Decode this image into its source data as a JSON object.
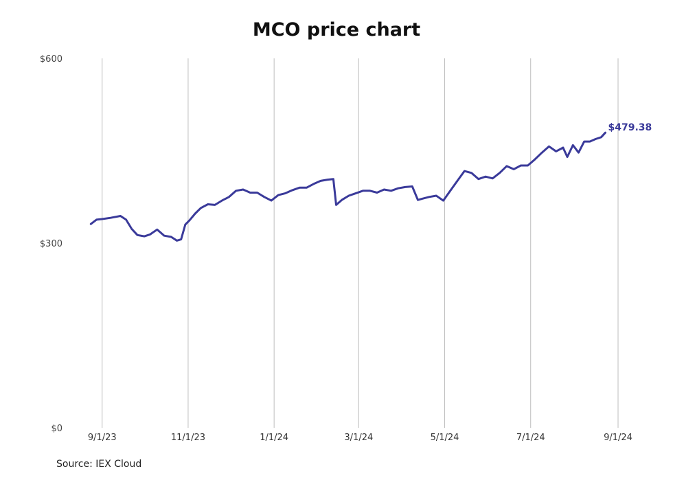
{
  "source_label": "Source: IEX Cloud",
  "colors": {
    "line": "#3a3a9a",
    "grid": "#bdbdbd"
  },
  "chart_data": {
    "type": "line",
    "title": "MCO price chart",
    "xlabel": "",
    "ylabel": "",
    "ylim": [
      0,
      600
    ],
    "xlim": [
      "2023-08-18",
      "2024-09-01"
    ],
    "y_ticks": [
      0,
      300,
      600
    ],
    "y_tick_labels": [
      "$0",
      "$300",
      "$600"
    ],
    "x_ticks": [
      "2023-09-01",
      "2023-11-01",
      "2024-01-01",
      "2024-03-01",
      "2024-05-01",
      "2024-07-01",
      "2024-09-01"
    ],
    "x_tick_labels": [
      "9/1/23",
      "11/1/23",
      "1/1/24",
      "3/1/24",
      "5/1/24",
      "7/1/24",
      "9/1/24"
    ],
    "grid": "vertical",
    "last_value_label": "$479.38",
    "series": [
      {
        "x": [
          "2023-08-24",
          "2023-08-28",
          "2023-09-01",
          "2023-09-07",
          "2023-09-14",
          "2023-09-18",
          "2023-09-22",
          "2023-09-26",
          "2023-10-01",
          "2023-10-05",
          "2023-10-10",
          "2023-10-15",
          "2023-10-20",
          "2023-10-24",
          "2023-10-27",
          "2023-10-30",
          "2023-11-02",
          "2023-11-06",
          "2023-11-10",
          "2023-11-15",
          "2023-11-20",
          "2023-11-25",
          "2023-11-30",
          "2023-12-05",
          "2023-12-10",
          "2023-12-15",
          "2023-12-20",
          "2023-12-25",
          "2023-12-30",
          "2024-01-04",
          "2024-01-09",
          "2024-01-14",
          "2024-01-19",
          "2024-01-24",
          "2024-01-29",
          "2024-02-03",
          "2024-02-08",
          "2024-02-12",
          "2024-02-14",
          "2024-02-18",
          "2024-02-23",
          "2024-02-28",
          "2024-03-04",
          "2024-03-09",
          "2024-03-14",
          "2024-03-19",
          "2024-03-24",
          "2024-03-29",
          "2024-04-03",
          "2024-04-08",
          "2024-04-12",
          "2024-04-15",
          "2024-04-20",
          "2024-04-25",
          "2024-04-30",
          "2024-05-05",
          "2024-05-10",
          "2024-05-15",
          "2024-05-20",
          "2024-05-25",
          "2024-05-30",
          "2024-06-04",
          "2024-06-09",
          "2024-06-14",
          "2024-06-19",
          "2024-06-24",
          "2024-06-29",
          "2024-07-04",
          "2024-07-09",
          "2024-07-14",
          "2024-07-19",
          "2024-07-24",
          "2024-07-27",
          "2024-07-31",
          "2024-08-04",
          "2024-08-08",
          "2024-08-12",
          "2024-08-16",
          "2024-08-20",
          "2024-08-23"
        ],
        "y": [
          331,
          338,
          339,
          341,
          344,
          338,
          323,
          313,
          311,
          314,
          322,
          312,
          310,
          304,
          306,
          330,
          337,
          348,
          357,
          363,
          362,
          369,
          375,
          385,
          387,
          382,
          382,
          375,
          369,
          378,
          381,
          386,
          390,
          390,
          396,
          401,
          403,
          404,
          362,
          370,
          377,
          381,
          385,
          385,
          382,
          387,
          385,
          389,
          391,
          392,
          370,
          372,
          375,
          377,
          369,
          385,
          401,
          417,
          414,
          404,
          408,
          405,
          414,
          425,
          420,
          426,
          426,
          436,
          447,
          457,
          449,
          455,
          440,
          459,
          447,
          465,
          465,
          469,
          472,
          479.38
        ]
      }
    ]
  }
}
